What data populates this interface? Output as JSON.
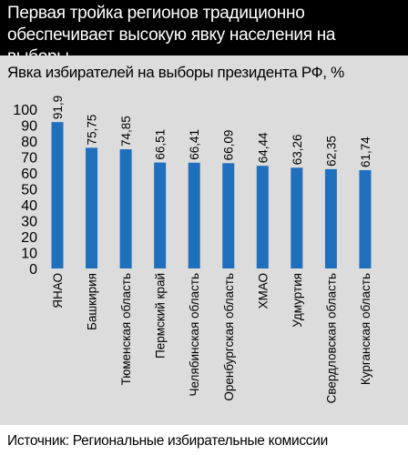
{
  "header": {
    "title": "Первая тройка регионов традиционно обеспечивает высокую явку населения на выборы"
  },
  "subtitle": "Явка избирателей на выборы президента РФ, %",
  "source": "Источник: Региональные избирательные комиссии",
  "colors": {
    "bar": "#1f6fbd",
    "header_bg": "#000000",
    "panel_bg": "#dcdcdc"
  },
  "chart_data": {
    "type": "bar",
    "ylabel": "%",
    "ylim": [
      0,
      100
    ],
    "yticks": [
      0,
      10,
      20,
      30,
      40,
      50,
      60,
      70,
      80,
      90,
      100
    ],
    "grid": false,
    "categories": [
      "ЯНАО",
      "Башкирия",
      "Тюменская область",
      "Пермский край",
      "Челябинская область",
      "Оренбургская область",
      "ХМАО",
      "Удмуртия",
      "Свердловская область",
      "Курганская область"
    ],
    "values": [
      91.9,
      75.75,
      74.85,
      66.51,
      66.41,
      66.09,
      64.44,
      63.26,
      62.35,
      61.74
    ],
    "value_labels": [
      "91,9",
      "75,75",
      "74,85",
      "66,51",
      "66,41",
      "66,09",
      "64,44",
      "63,26",
      "62,35",
      "61,74"
    ]
  }
}
